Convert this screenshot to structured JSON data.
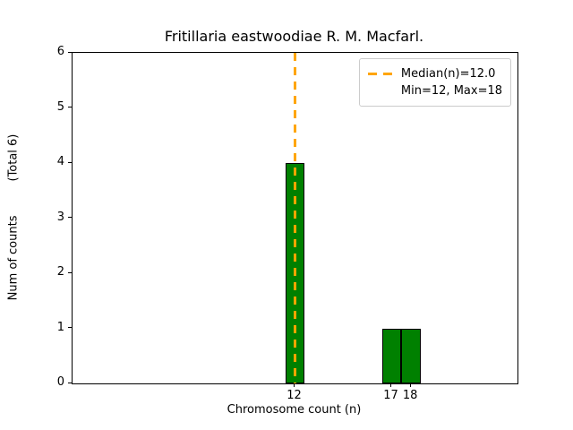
{
  "chart_data": {
    "type": "bar",
    "title": "Fritillaria eastwoodiae R. M. Macfarl.",
    "xlabel": "Chromosome count (n)",
    "ylabel": "Num of counts",
    "ylabel_annotation": "(Total 6)",
    "bars": [
      {
        "x": 12,
        "count": 4
      },
      {
        "x": 17,
        "count": 1
      },
      {
        "x": 18,
        "count": 1
      }
    ],
    "bar_width": 1,
    "total_counts": 6,
    "median": 12.0,
    "min": 12,
    "max": 18,
    "xticks": [
      12,
      17,
      18
    ],
    "yticks": [
      0,
      1,
      2,
      3,
      4,
      5,
      6
    ],
    "xlim": [
      0.5,
      23.5
    ],
    "ylim": [
      0,
      6
    ],
    "grid": false,
    "legend": {
      "position": "upper right",
      "entries": [
        "Median(n)=12.0",
        "Min=12, Max=18"
      ]
    },
    "colors": {
      "bar_fill": "#008000",
      "bar_edge": "#000000",
      "median_line": "#FFA500",
      "background": "#FFFFFF",
      "axis": "#000000"
    }
  }
}
